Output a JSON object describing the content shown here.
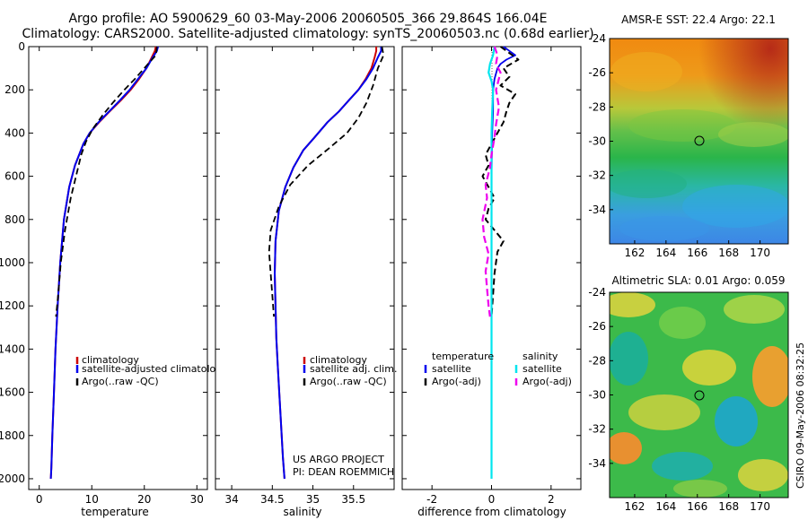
{
  "header": {
    "line1": "Argo profile: AO 5900629_60 03-May-2006 20060505_366 29.864S 166.04E",
    "line2": "Climatology: CARS2000. Satellite-adjusted climatology: synTS_20060503.nc (0.68d earlier)"
  },
  "credit": {
    "project": "US ARGO PROJECT",
    "pi": "PI: DEAN ROEMMICH"
  },
  "stamp": "CSIRO 09-May-2006 08:32:25",
  "colors": {
    "climatology": "#cc0000",
    "satellite": "#0000ee",
    "argo": "#000000",
    "cyan": "#00e5ee",
    "magenta": "#ee00ee"
  },
  "chart_data": [
    {
      "type": "line",
      "name": "temperature-profile",
      "xlabel": "temperature",
      "xlim": [
        -2,
        32
      ],
      "ylim": [
        0,
        2050
      ],
      "xticks": [
        0,
        10,
        20,
        30
      ],
      "yticks": [
        0,
        200,
        400,
        600,
        800,
        1000,
        1200,
        1400,
        1600,
        1800,
        2000
      ],
      "legend": [
        "climatology",
        "satellite-adjusted climatology",
        "Argo(..raw -QC)"
      ],
      "series": [
        {
          "name": "climatology",
          "x": [
            22.2,
            22.0,
            21.4,
            20.4,
            19.0,
            17.4,
            15.5,
            13.4,
            11.4,
            9.6,
            8.4,
            7.6,
            6.8,
            5.7,
            4.7,
            4.0,
            3.5,
            3.1,
            2.8,
            2.5,
            2.3,
            2.2
          ],
          "y": [
            0,
            20,
            50,
            100,
            150,
            200,
            250,
            300,
            350,
            400,
            450,
            500,
            550,
            650,
            800,
            1000,
            1200,
            1400,
            1600,
            1800,
            1950,
            2000
          ]
        },
        {
          "name": "satellite",
          "x": [
            22.6,
            22.4,
            21.6,
            20.4,
            18.8,
            17.2,
            15.3,
            13.3,
            11.3,
            9.6,
            8.4,
            7.6,
            6.8,
            5.7,
            4.7,
            4.0,
            3.5,
            3.1,
            2.8,
            2.5,
            2.3,
            2.2
          ],
          "y": [
            0,
            20,
            50,
            100,
            150,
            200,
            250,
            300,
            350,
            400,
            450,
            500,
            550,
            650,
            800,
            1000,
            1200,
            1400,
            1600,
            1800,
            1950,
            2000
          ]
        },
        {
          "name": "argo",
          "x": [
            22.4,
            22.2,
            20.7,
            18.2,
            16.2,
            14.0,
            12.0,
            10.2,
            8.9,
            8.0,
            7.4,
            6.8,
            6.0,
            4.9,
            4.1,
            3.6,
            3.2
          ],
          "y": [
            0,
            40,
            80,
            150,
            200,
            260,
            320,
            380,
            440,
            500,
            560,
            620,
            700,
            850,
            1000,
            1150,
            1250
          ]
        }
      ]
    },
    {
      "type": "line",
      "name": "salinity-profile",
      "xlabel": "salinity",
      "xlim": [
        33.8,
        36.0
      ],
      "ylim": [
        0,
        2050
      ],
      "xticks": [
        34,
        34.5,
        35,
        35.5
      ],
      "legend": [
        "climatology",
        "satellite adj. clim.",
        "Argo(..raw -QC)"
      ],
      "series": [
        {
          "name": "climatology",
          "x": [
            35.78,
            35.78,
            35.76,
            35.72,
            35.65,
            35.56,
            35.44,
            35.32,
            35.18,
            35.02,
            34.88,
            34.76,
            34.66,
            34.58,
            34.54,
            34.53,
            34.54,
            34.55,
            34.57,
            34.6,
            34.63,
            34.65
          ],
          "y": [
            0,
            20,
            50,
            100,
            150,
            200,
            250,
            300,
            350,
            420,
            480,
            560,
            650,
            760,
            900,
            1050,
            1200,
            1350,
            1500,
            1700,
            1900,
            2000
          ]
        },
        {
          "name": "satellite",
          "x": [
            35.84,
            35.84,
            35.8,
            35.74,
            35.66,
            35.56,
            35.44,
            35.32,
            35.18,
            35.02,
            34.88,
            34.76,
            34.66,
            34.58,
            34.54,
            34.53,
            34.54,
            34.55,
            34.57,
            34.6,
            34.63,
            34.65
          ],
          "y": [
            0,
            20,
            50,
            100,
            150,
            200,
            250,
            300,
            350,
            420,
            480,
            560,
            650,
            760,
            900,
            1050,
            1200,
            1350,
            1500,
            1700,
            1900,
            2000
          ]
        },
        {
          "name": "argo",
          "x": [
            35.85,
            35.87,
            35.8,
            35.74,
            35.66,
            35.56,
            35.42,
            35.2,
            34.94,
            34.72,
            34.58,
            34.48,
            34.46,
            34.48,
            34.5,
            34.52
          ],
          "y": [
            0,
            40,
            100,
            180,
            260,
            330,
            400,
            470,
            550,
            640,
            740,
            850,
            950,
            1050,
            1150,
            1250
          ]
        }
      ]
    },
    {
      "type": "line",
      "name": "difference-profile",
      "xlabel": "difference from climatology",
      "xlim": [
        -3,
        3
      ],
      "ylim": [
        0,
        2050
      ],
      "xticks": [
        -2,
        0,
        2
      ],
      "legend": [
        "temperature",
        "satellite",
        "Argo(-adj)",
        "salinity",
        "satellite",
        "Argo(-adj)"
      ],
      "series": [
        {
          "name": "temperature-satellite",
          "x": [
            0.4,
            0.6,
            0.8,
            0.5,
            0.3,
            0.2,
            0.1,
            0.05,
            0.05,
            0.02,
            0,
            0,
            0
          ],
          "y": [
            0,
            20,
            40,
            60,
            80,
            100,
            150,
            200,
            300,
            400,
            600,
            1000,
            1750
          ]
        },
        {
          "name": "temperature-argo",
          "x": [
            0.3,
            0.6,
            0.9,
            0.4,
            0.6,
            0.3,
            0.8,
            0.6,
            0.5,
            0.4,
            0.2,
            0,
            -0.2,
            -0.1,
            -0.3,
            -0.1,
            0.1,
            -0.1,
            -0.2,
            0.1,
            0.4,
            0.2,
            0.1,
            0
          ],
          "y": [
            0,
            30,
            60,
            100,
            140,
            180,
            220,
            260,
            300,
            350,
            400,
            450,
            500,
            550,
            600,
            650,
            700,
            750,
            800,
            850,
            900,
            950,
            1050,
            1250
          ]
        },
        {
          "name": "salinity-satellite",
          "x": [
            0.1,
            0.05,
            -0.05,
            -0.1,
            0,
            0.05,
            0.02,
            0,
            0,
            0,
            0
          ],
          "y": [
            0,
            40,
            80,
            120,
            160,
            200,
            300,
            400,
            600,
            1200,
            2000
          ]
        },
        {
          "name": "salinity-argo",
          "x": [
            0.1,
            0.2,
            0.15,
            0.3,
            0.15,
            0.25,
            0.15,
            0.1,
            0,
            -0.05,
            -0.2,
            -0.15,
            -0.3,
            -0.25,
            -0.1,
            -0.2,
            -0.15,
            -0.1,
            -0.05
          ],
          "y": [
            0,
            40,
            80,
            120,
            200,
            280,
            360,
            420,
            500,
            560,
            640,
            700,
            800,
            880,
            960,
            1040,
            1120,
            1200,
            1250
          ]
        }
      ]
    },
    {
      "type": "heatmap",
      "name": "amsr-sst-map",
      "title": "AMSR-E SST: 22.4  Argo: 22.1",
      "xticks": [
        162,
        164,
        166,
        168,
        170
      ],
      "yticks": [
        -24,
        -26,
        -28,
        -30,
        -32,
        -34
      ],
      "xlim": [
        160.4,
        171.8
      ],
      "ylim": [
        -36,
        -24
      ],
      "argo_location": [
        166.04,
        -29.864
      ]
    },
    {
      "type": "heatmap",
      "name": "altimetric-sla-map",
      "title": "Altimetric SLA: 0.01  Argo: 0.059",
      "xticks": [
        162,
        164,
        166,
        168,
        170
      ],
      "yticks": [
        -24,
        -26,
        -28,
        -30,
        -32,
        -34
      ],
      "xlim": [
        160.4,
        171.8
      ],
      "ylim": [
        -36,
        -24
      ],
      "argo_location": [
        166.04,
        -29.864
      ]
    }
  ]
}
